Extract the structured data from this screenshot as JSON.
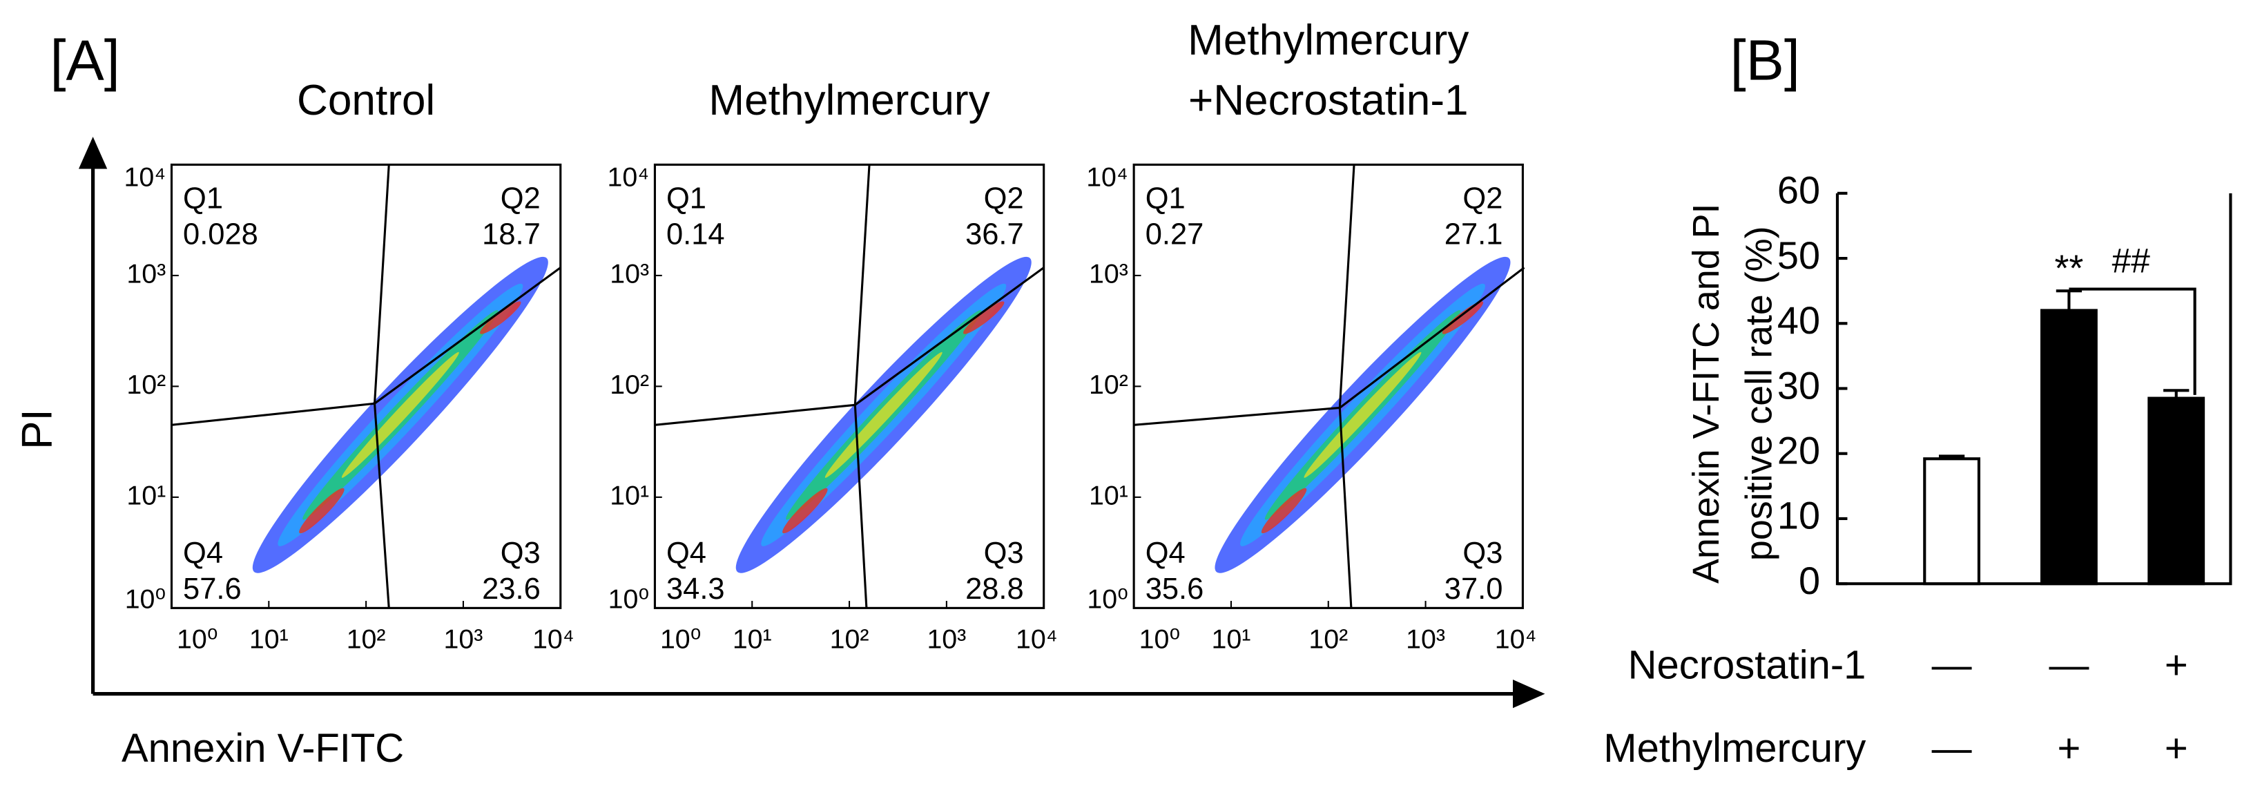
{
  "panel_a": {
    "label": "[A]",
    "y_label": "PI",
    "x_label": "Annexin V-FITC",
    "scale": {
      "log": true,
      "lim": [
        1,
        10000
      ],
      "ticks": [
        {
          "value": 1,
          "label": "10⁰"
        },
        {
          "value": 10,
          "label": "10¹"
        },
        {
          "value": 100,
          "label": "10²"
        },
        {
          "value": 1000,
          "label": "10³"
        },
        {
          "value": 10000,
          "label": "10⁴"
        }
      ]
    },
    "plots": [
      {
        "title_lines": [
          "Control"
        ],
        "quadrants": [
          {
            "name": "Q1",
            "value": "0.028"
          },
          {
            "name": "Q2",
            "value": "18.7"
          },
          {
            "name": "Q3",
            "value": "23.6"
          },
          {
            "name": "Q4",
            "value": "57.6"
          }
        ]
      },
      {
        "title_lines": [
          "Methylmercury"
        ],
        "quadrants": [
          {
            "name": "Q1",
            "value": "0.14"
          },
          {
            "name": "Q2",
            "value": "36.7"
          },
          {
            "name": "Q3",
            "value": "28.8"
          },
          {
            "name": "Q4",
            "value": "34.3"
          }
        ]
      },
      {
        "title_lines": [
          "Methylmercury",
          "+Necrostatin-1"
        ],
        "quadrants": [
          {
            "name": "Q1",
            "value": "0.27"
          },
          {
            "name": "Q2",
            "value": "27.1"
          },
          {
            "name": "Q3",
            "value": "37.0"
          },
          {
            "name": "Q4",
            "value": "35.6"
          }
        ]
      }
    ]
  },
  "chart_data": {
    "type": "bar",
    "label": "[B]",
    "y_label_lines": [
      "Annexin V-FITC and PI",
      "positive cell rate (%)"
    ],
    "values": [
      19.2,
      42,
      28.5
    ],
    "errors": [
      0.4,
      3,
      1.2
    ],
    "colors": [
      "#ffffff",
      "#000000",
      "#000000"
    ],
    "ylim": [
      0,
      60
    ],
    "yticks": [
      0,
      10,
      20,
      30,
      40,
      50,
      60
    ],
    "significance": [
      null,
      "**",
      null
    ],
    "comparison_label": "##",
    "conditions": [
      {
        "name": "Necrostatin-1",
        "values": [
          "—",
          "—",
          "+"
        ]
      },
      {
        "name": "Methylmercury",
        "values": [
          "—",
          "+",
          "+"
        ]
      }
    ]
  }
}
